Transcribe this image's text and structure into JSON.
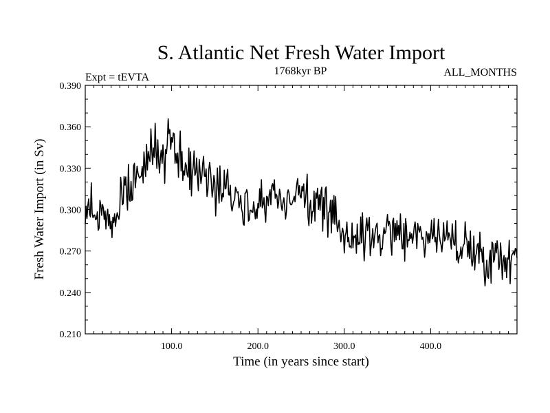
{
  "chart_data": {
    "type": "line",
    "title": "S. Atlantic Net Fresh Water Import",
    "subtitle_left": "Expt = tEVTA",
    "subtitle_center": "1768kyr BP",
    "subtitle_right": "ALL_MONTHS",
    "xlabel": "Time (in years since start)",
    "ylabel": "Fresh Water Import (in Sv)",
    "xlim": [
      0,
      500
    ],
    "ylim": [
      0.21,
      0.39
    ],
    "x_major_ticks": [
      {
        "value": 100,
        "label": "100.0"
      },
      {
        "value": 200,
        "label": "200.0"
      },
      {
        "value": 300,
        "label": "300.0"
      },
      {
        "value": 400,
        "label": "400.0"
      }
    ],
    "y_major_ticks": [
      {
        "value": 0.21,
        "label": "0.210"
      },
      {
        "value": 0.24,
        "label": "0.240"
      },
      {
        "value": 0.27,
        "label": "0.270"
      },
      {
        "value": 0.3,
        "label": "0.300"
      },
      {
        "value": 0.33,
        "label": "0.330"
      },
      {
        "value": 0.36,
        "label": "0.360"
      },
      {
        "value": 0.39,
        "label": "0.390"
      }
    ],
    "series": [
      {
        "name": "Fresh Water Import",
        "color": "#000000",
        "x": [
          0,
          10,
          20,
          30,
          40,
          50,
          60,
          70,
          80,
          90,
          100,
          110,
          120,
          130,
          140,
          150,
          160,
          170,
          180,
          190,
          200,
          210,
          220,
          230,
          240,
          250,
          260,
          270,
          280,
          290,
          300,
          310,
          320,
          330,
          340,
          350,
          360,
          370,
          380,
          390,
          400,
          410,
          420,
          430,
          440,
          450,
          460,
          470,
          480,
          490,
          500
        ],
        "values": [
          0.292,
          0.305,
          0.297,
          0.29,
          0.3,
          0.315,
          0.323,
          0.338,
          0.344,
          0.333,
          0.351,
          0.336,
          0.329,
          0.326,
          0.324,
          0.318,
          0.32,
          0.317,
          0.306,
          0.3,
          0.304,
          0.309,
          0.312,
          0.306,
          0.311,
          0.314,
          0.304,
          0.306,
          0.294,
          0.29,
          0.284,
          0.282,
          0.279,
          0.28,
          0.283,
          0.281,
          0.282,
          0.284,
          0.283,
          0.282,
          0.281,
          0.28,
          0.279,
          0.276,
          0.273,
          0.27,
          0.268,
          0.265,
          0.266,
          0.266,
          0.265
        ]
      }
    ]
  }
}
